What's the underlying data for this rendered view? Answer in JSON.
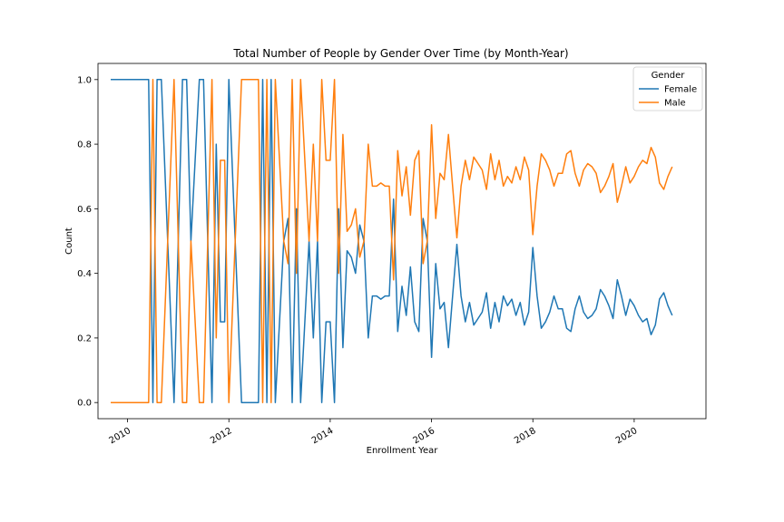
{
  "chart_data": {
    "type": "line",
    "title": "Total Number of People by Gender Over Time (by Month-Year)",
    "xlabel": "Enrollment Year",
    "ylabel": "Count",
    "ylim": [
      -0.05,
      1.05
    ],
    "yticks": [
      "0.0",
      "0.2",
      "0.4",
      "0.6",
      "0.8",
      "1.0"
    ],
    "xlim": [
      "2009-06",
      "2021-06"
    ],
    "xticks": [
      "2010",
      "2012",
      "2014",
      "2016",
      "2018",
      "2020"
    ],
    "grid": false,
    "legend": {
      "title": "Gender",
      "placement": "top-right"
    },
    "series": [
      {
        "name": "Female",
        "color": "#1f77b4",
        "points": [
          [
            "2009-09",
            1.0
          ],
          [
            "2010-06",
            1.0
          ],
          [
            "2010-07",
            0.0
          ],
          [
            "2010-08",
            1.0
          ],
          [
            "2010-09",
            1.0
          ],
          [
            "2010-12",
            0.0
          ],
          [
            "2011-02",
            1.0
          ],
          [
            "2011-03",
            1.0
          ],
          [
            "2011-04",
            0.5
          ],
          [
            "2011-06",
            1.0
          ],
          [
            "2011-07",
            1.0
          ],
          [
            "2011-09",
            0.0
          ],
          [
            "2011-10",
            0.8
          ],
          [
            "2011-11",
            0.25
          ],
          [
            "2011-12",
            0.25
          ],
          [
            "2012-01",
            1.0
          ],
          [
            "2012-04",
            0.0
          ],
          [
            "2012-08",
            0.0
          ],
          [
            "2012-09",
            1.0
          ],
          [
            "2012-10",
            0.0
          ],
          [
            "2012-11",
            1.0
          ],
          [
            "2012-12",
            0.0
          ],
          [
            "2013-02",
            0.5
          ],
          [
            "2013-03",
            0.57
          ],
          [
            "2013-04",
            0.0
          ],
          [
            "2013-05",
            0.6
          ],
          [
            "2013-06",
            0.0
          ],
          [
            "2013-08",
            0.5
          ],
          [
            "2013-09",
            0.2
          ],
          [
            "2013-10",
            0.5
          ],
          [
            "2013-11",
            0.0
          ],
          [
            "2013-12",
            0.25
          ],
          [
            "2014-01",
            0.25
          ],
          [
            "2014-02",
            0.0
          ],
          [
            "2014-03",
            0.6
          ],
          [
            "2014-04",
            0.17
          ],
          [
            "2014-05",
            0.47
          ],
          [
            "2014-06",
            0.45
          ],
          [
            "2014-07",
            0.4
          ],
          [
            "2014-08",
            0.55
          ],
          [
            "2014-09",
            0.5
          ],
          [
            "2014-10",
            0.2
          ],
          [
            "2014-11",
            0.33
          ],
          [
            "2014-12",
            0.33
          ],
          [
            "2015-01",
            0.32
          ],
          [
            "2015-02",
            0.33
          ],
          [
            "2015-03",
            0.33
          ],
          [
            "2015-04",
            0.63
          ],
          [
            "2015-05",
            0.22
          ],
          [
            "2015-06",
            0.36
          ],
          [
            "2015-07",
            0.27
          ],
          [
            "2015-08",
            0.42
          ],
          [
            "2015-09",
            0.25
          ],
          [
            "2015-10",
            0.22
          ],
          [
            "2015-11",
            0.57
          ],
          [
            "2015-12",
            0.5
          ],
          [
            "2016-01",
            0.14
          ],
          [
            "2016-02",
            0.43
          ],
          [
            "2016-03",
            0.29
          ],
          [
            "2016-04",
            0.31
          ],
          [
            "2016-05",
            0.17
          ],
          [
            "2016-06",
            0.33
          ],
          [
            "2016-07",
            0.49
          ],
          [
            "2016-08",
            0.33
          ],
          [
            "2016-09",
            0.25
          ],
          [
            "2016-10",
            0.31
          ],
          [
            "2016-11",
            0.24
          ],
          [
            "2016-12",
            0.26
          ],
          [
            "2017-01",
            0.28
          ],
          [
            "2017-02",
            0.34
          ],
          [
            "2017-03",
            0.23
          ],
          [
            "2017-04",
            0.31
          ],
          [
            "2017-05",
            0.25
          ],
          [
            "2017-06",
            0.33
          ],
          [
            "2017-07",
            0.3
          ],
          [
            "2017-08",
            0.32
          ],
          [
            "2017-09",
            0.27
          ],
          [
            "2017-10",
            0.31
          ],
          [
            "2017-11",
            0.24
          ],
          [
            "2017-12",
            0.28
          ],
          [
            "2018-01",
            0.48
          ],
          [
            "2018-02",
            0.33
          ],
          [
            "2018-03",
            0.23
          ],
          [
            "2018-04",
            0.25
          ],
          [
            "2018-05",
            0.28
          ],
          [
            "2018-06",
            0.33
          ],
          [
            "2018-07",
            0.29
          ],
          [
            "2018-08",
            0.29
          ],
          [
            "2018-09",
            0.23
          ],
          [
            "2018-10",
            0.22
          ],
          [
            "2018-11",
            0.29
          ],
          [
            "2018-12",
            0.33
          ],
          [
            "2019-01",
            0.28
          ],
          [
            "2019-02",
            0.26
          ],
          [
            "2019-03",
            0.27
          ],
          [
            "2019-04",
            0.29
          ],
          [
            "2019-05",
            0.35
          ],
          [
            "2019-06",
            0.33
          ],
          [
            "2019-07",
            0.3
          ],
          [
            "2019-08",
            0.26
          ],
          [
            "2019-09",
            0.38
          ],
          [
            "2019-10",
            0.33
          ],
          [
            "2019-11",
            0.27
          ],
          [
            "2019-12",
            0.32
          ],
          [
            "2020-01",
            0.3
          ],
          [
            "2020-02",
            0.27
          ],
          [
            "2020-03",
            0.25
          ],
          [
            "2020-04",
            0.26
          ],
          [
            "2020-05",
            0.21
          ],
          [
            "2020-06",
            0.24
          ],
          [
            "2020-07",
            0.32
          ],
          [
            "2020-08",
            0.34
          ],
          [
            "2020-09",
            0.3
          ],
          [
            "2020-10",
            0.27
          ]
        ]
      },
      {
        "name": "Male",
        "color": "#ff7f0e",
        "points": [
          [
            "2009-09",
            0.0
          ],
          [
            "2010-06",
            0.0
          ],
          [
            "2010-07",
            1.0
          ],
          [
            "2010-08",
            0.0
          ],
          [
            "2010-09",
            0.0
          ],
          [
            "2010-12",
            1.0
          ],
          [
            "2011-02",
            0.0
          ],
          [
            "2011-03",
            0.0
          ],
          [
            "2011-04",
            0.5
          ],
          [
            "2011-06",
            0.0
          ],
          [
            "2011-07",
            0.0
          ],
          [
            "2011-09",
            1.0
          ],
          [
            "2011-10",
            0.2
          ],
          [
            "2011-11",
            0.75
          ],
          [
            "2011-12",
            0.75
          ],
          [
            "2012-01",
            0.0
          ],
          [
            "2012-04",
            1.0
          ],
          [
            "2012-08",
            1.0
          ],
          [
            "2012-09",
            0.0
          ],
          [
            "2012-10",
            1.0
          ],
          [
            "2012-11",
            0.0
          ],
          [
            "2012-12",
            1.0
          ],
          [
            "2013-02",
            0.5
          ],
          [
            "2013-03",
            0.43
          ],
          [
            "2013-04",
            1.0
          ],
          [
            "2013-05",
            0.4
          ],
          [
            "2013-06",
            1.0
          ],
          [
            "2013-08",
            0.5
          ],
          [
            "2013-09",
            0.8
          ],
          [
            "2013-10",
            0.5
          ],
          [
            "2013-11",
            1.0
          ],
          [
            "2013-12",
            0.75
          ],
          [
            "2014-01",
            0.75
          ],
          [
            "2014-02",
            1.0
          ],
          [
            "2014-03",
            0.4
          ],
          [
            "2014-04",
            0.83
          ],
          [
            "2014-05",
            0.53
          ],
          [
            "2014-06",
            0.55
          ],
          [
            "2014-07",
            0.6
          ],
          [
            "2014-08",
            0.45
          ],
          [
            "2014-09",
            0.5
          ],
          [
            "2014-10",
            0.8
          ],
          [
            "2014-11",
            0.67
          ],
          [
            "2014-12",
            0.67
          ],
          [
            "2015-01",
            0.68
          ],
          [
            "2015-02",
            0.67
          ],
          [
            "2015-03",
            0.67
          ],
          [
            "2015-04",
            0.38
          ],
          [
            "2015-05",
            0.78
          ],
          [
            "2015-06",
            0.64
          ],
          [
            "2015-07",
            0.73
          ],
          [
            "2015-08",
            0.58
          ],
          [
            "2015-09",
            0.75
          ],
          [
            "2015-10",
            0.78
          ],
          [
            "2015-11",
            0.43
          ],
          [
            "2015-12",
            0.5
          ],
          [
            "2016-01",
            0.86
          ],
          [
            "2016-02",
            0.57
          ],
          [
            "2016-03",
            0.71
          ],
          [
            "2016-04",
            0.69
          ],
          [
            "2016-05",
            0.83
          ],
          [
            "2016-06",
            0.67
          ],
          [
            "2016-07",
            0.51
          ],
          [
            "2016-08",
            0.67
          ],
          [
            "2016-09",
            0.75
          ],
          [
            "2016-10",
            0.69
          ],
          [
            "2016-11",
            0.76
          ],
          [
            "2016-12",
            0.74
          ],
          [
            "2017-01",
            0.72
          ],
          [
            "2017-02",
            0.66
          ],
          [
            "2017-03",
            0.77
          ],
          [
            "2017-04",
            0.69
          ],
          [
            "2017-05",
            0.75
          ],
          [
            "2017-06",
            0.67
          ],
          [
            "2017-07",
            0.7
          ],
          [
            "2017-08",
            0.68
          ],
          [
            "2017-09",
            0.73
          ],
          [
            "2017-10",
            0.69
          ],
          [
            "2017-11",
            0.76
          ],
          [
            "2017-12",
            0.72
          ],
          [
            "2018-01",
            0.52
          ],
          [
            "2018-02",
            0.67
          ],
          [
            "2018-03",
            0.77
          ],
          [
            "2018-04",
            0.75
          ],
          [
            "2018-05",
            0.72
          ],
          [
            "2018-06",
            0.67
          ],
          [
            "2018-07",
            0.71
          ],
          [
            "2018-08",
            0.71
          ],
          [
            "2018-09",
            0.77
          ],
          [
            "2018-10",
            0.78
          ],
          [
            "2018-11",
            0.71
          ],
          [
            "2018-12",
            0.67
          ],
          [
            "2019-01",
            0.72
          ],
          [
            "2019-02",
            0.74
          ],
          [
            "2019-03",
            0.73
          ],
          [
            "2019-04",
            0.71
          ],
          [
            "2019-05",
            0.65
          ],
          [
            "2019-06",
            0.67
          ],
          [
            "2019-07",
            0.7
          ],
          [
            "2019-08",
            0.74
          ],
          [
            "2019-09",
            0.62
          ],
          [
            "2019-10",
            0.67
          ],
          [
            "2019-11",
            0.73
          ],
          [
            "2019-12",
            0.68
          ],
          [
            "2020-01",
            0.7
          ],
          [
            "2020-02",
            0.73
          ],
          [
            "2020-03",
            0.75
          ],
          [
            "2020-04",
            0.74
          ],
          [
            "2020-05",
            0.79
          ],
          [
            "2020-06",
            0.76
          ],
          [
            "2020-07",
            0.68
          ],
          [
            "2020-08",
            0.66
          ],
          [
            "2020-09",
            0.7
          ],
          [
            "2020-10",
            0.73
          ]
        ]
      }
    ]
  }
}
